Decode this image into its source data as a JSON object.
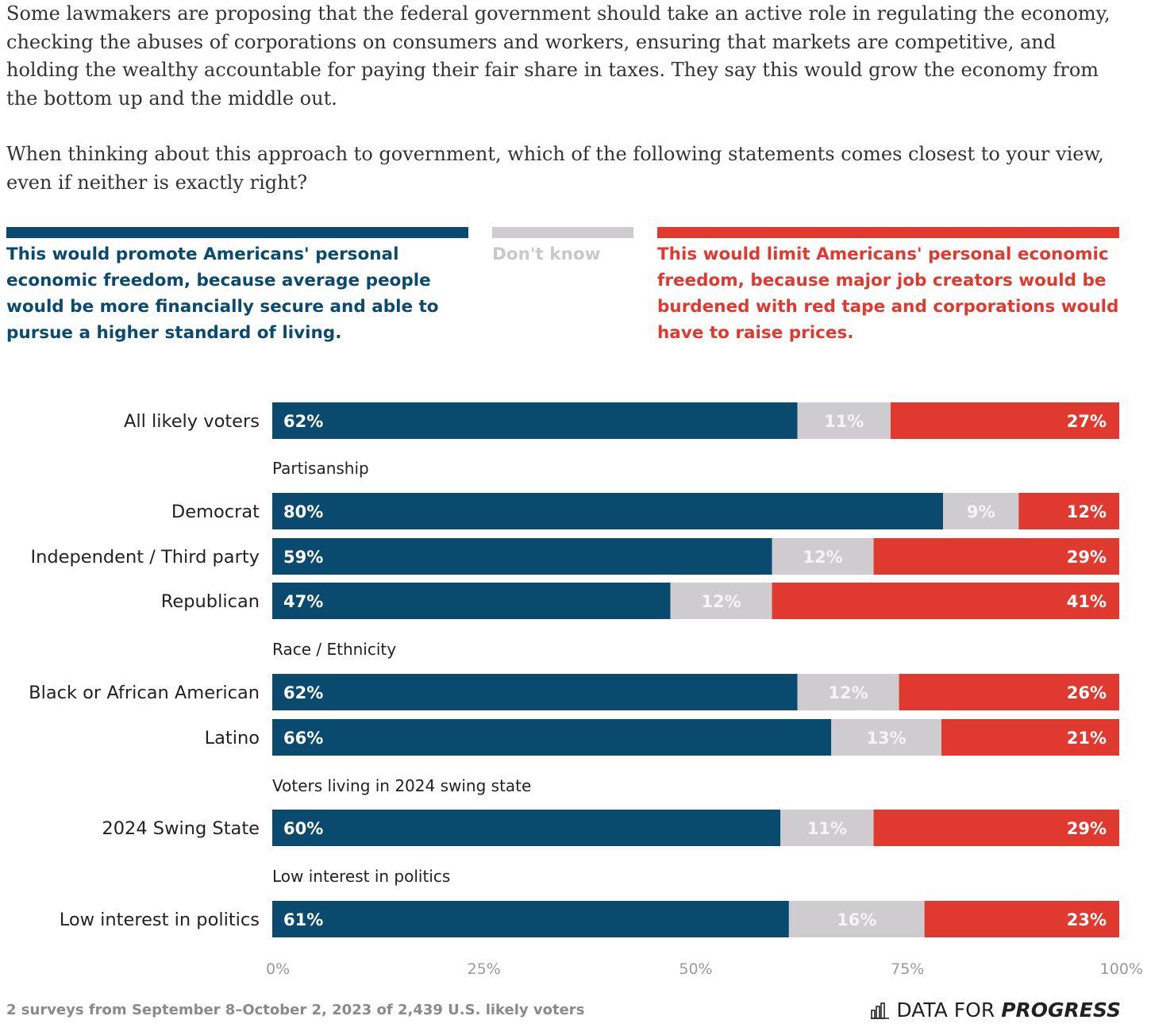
{
  "intro": {
    "paragraph1": "Some lawmakers are proposing that the federal government should take an active role in regulating the economy, checking the abuses of corporations on consumers and workers, ensuring that markets are competitive, and holding the wealthy accountable for paying their fair share in taxes. They say this would grow the economy from the bottom up and the middle out.",
    "paragraph2": "When thinking about this approach to government, which of the following statements comes closest to your view, even if neither is exactly right?"
  },
  "colors": {
    "promote": "#0b4a6f",
    "dont_know": "#cfcccf",
    "limit": "#e03a30",
    "legend_dont_know_text": "#c9c7c9",
    "text": "#222222"
  },
  "chart_data": {
    "type": "bar",
    "orientation": "horizontal",
    "stacked": true,
    "xlim": [
      0,
      100
    ],
    "x_ticks": [
      "0%",
      "25%",
      "50%",
      "75%",
      "100%"
    ],
    "legend_placement": "top",
    "series": [
      {
        "name": "This would promote Americans' personal economic freedom, because average people would be more financially secure and able to pursue a higher standard of living.",
        "color": "#0b4a6f"
      },
      {
        "name": "Don't know",
        "color": "#cfcccf"
      },
      {
        "name": "This would limit Americans' personal economic freedom, because major job creators would be burdened with red tape and corporations would have to raise prices.",
        "color": "#e03a30"
      }
    ],
    "rows": [
      {
        "kind": "bar",
        "label": "All likely voters",
        "values": [
          62,
          11,
          27
        ]
      },
      {
        "kind": "group",
        "label": "Partisanship"
      },
      {
        "kind": "bar",
        "label": "Democrat",
        "values": [
          80,
          9,
          12
        ]
      },
      {
        "kind": "bar",
        "label": "Independent / Third party",
        "values": [
          59,
          12,
          29
        ]
      },
      {
        "kind": "bar",
        "label": "Republican",
        "values": [
          47,
          12,
          41
        ]
      },
      {
        "kind": "group",
        "label": "Race / Ethnicity"
      },
      {
        "kind": "bar",
        "label": "Black or African American",
        "values": [
          62,
          12,
          26
        ]
      },
      {
        "kind": "bar",
        "label": "Latino",
        "values": [
          66,
          13,
          21
        ]
      },
      {
        "kind": "group",
        "label": "Voters living in 2024 swing state"
      },
      {
        "kind": "bar",
        "label": "2024 Swing State",
        "values": [
          60,
          11,
          29
        ]
      },
      {
        "kind": "group",
        "label": "Low interest in politics"
      },
      {
        "kind": "bar",
        "label": "Low interest in politics",
        "values": [
          61,
          16,
          23
        ]
      }
    ]
  },
  "footer": {
    "note": "2 surveys from September 8–October 2, 2023 of 2,439 U.S. likely voters",
    "brand_part1": "DATA FOR",
    "brand_part2": "PROGRESS",
    "brand_icon": "bar-chart-icon"
  }
}
